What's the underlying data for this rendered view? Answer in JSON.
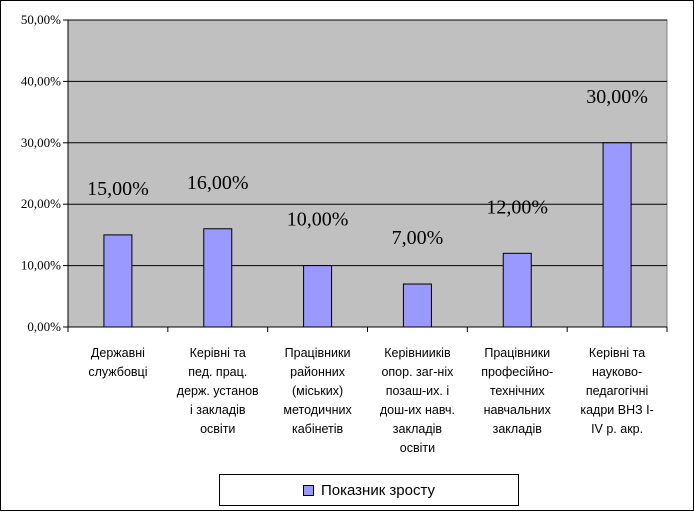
{
  "chart_data": {
    "type": "bar",
    "categories": [
      [
        "Державні",
        "службовці"
      ],
      [
        "Керівні та",
        "пед. прац.",
        "держ. установ",
        "і закладів",
        "освіти"
      ],
      [
        "Працівники",
        "районних",
        "(міських)",
        "методичних",
        "кабінетів"
      ],
      [
        "Керівнииків",
        "опор. заг-ніх",
        "позаш-их. і",
        "дош-их навч.",
        "закладів",
        "освіти"
      ],
      [
        "Працівники",
        "професійно-",
        "технічних",
        "навчальних",
        "закладів"
      ],
      [
        "Керівні та",
        "науково-",
        "педагогічні",
        "кадри ВНЗ І-",
        "IV р. акр."
      ]
    ],
    "series": [
      {
        "name": "Показник зросту",
        "values": [
          15,
          16,
          10,
          7,
          12,
          30
        ],
        "labels": [
          "15,00%",
          "16,00%",
          "10,00%",
          "7,00%",
          "12,00%",
          "30,00%"
        ]
      }
    ],
    "ylim": [
      0,
      50
    ],
    "yticks": [
      {
        "value": 0,
        "label": "0,00%"
      },
      {
        "value": 10,
        "label": "10,00%"
      },
      {
        "value": 20,
        "label": "20,00%"
      },
      {
        "value": 30,
        "label": "30,00%"
      },
      {
        "value": 40,
        "label": "40,00%"
      },
      {
        "value": 50,
        "label": "50,00%"
      }
    ],
    "grid": true,
    "legend_position": "bottom",
    "colors": {
      "plot_background": "#c0c0c0",
      "bar_fill": "#9999ff",
      "bar_stroke": "#000000",
      "gridline": "#000000"
    }
  },
  "legend": {
    "label": "Показник зросту"
  }
}
